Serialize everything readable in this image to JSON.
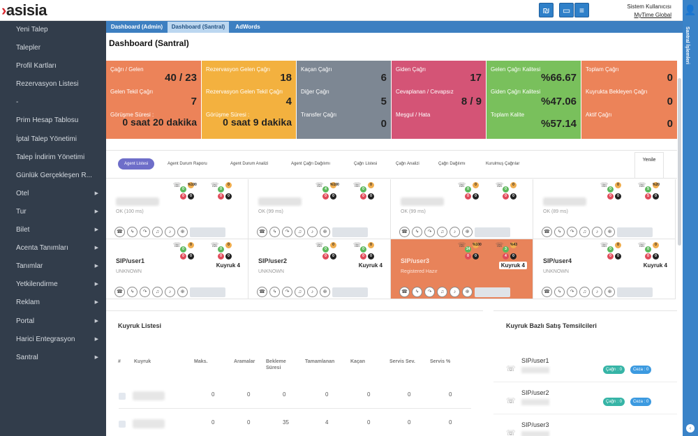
{
  "header": {
    "logo": "asisia",
    "user_title": "Sistem Kullanıcısı",
    "user_company": "MyTime Global",
    "icons": [
      "shekel-icon",
      "monitor-icon",
      "menu-icon",
      "user-icon"
    ]
  },
  "sidebar": {
    "items": [
      {
        "label": "Yeni Talep",
        "sub": false
      },
      {
        "label": "Talepler",
        "sub": false
      },
      {
        "label": "Profil Kartları",
        "sub": false
      },
      {
        "label": "Rezervasyon Listesi",
        "sub": false
      },
      {
        "label": "-",
        "sub": false
      },
      {
        "label": "Prim Hesap Tablosu",
        "sub": false
      },
      {
        "label": "İptal Talep Yönetimi",
        "sub": false
      },
      {
        "label": "Talep İndirim Yönetimi",
        "sub": false
      },
      {
        "label": "Günlük Gerçekleşen R...",
        "sub": false
      },
      {
        "label": "Otel",
        "sub": true
      },
      {
        "label": "Tur",
        "sub": true
      },
      {
        "label": "Bilet",
        "sub": true
      },
      {
        "label": "Acenta Tanımları",
        "sub": true
      },
      {
        "label": "Tanımlar",
        "sub": true
      },
      {
        "label": "Yetkilendirme",
        "sub": true
      },
      {
        "label": "Reklam",
        "sub": true
      },
      {
        "label": "Portal",
        "sub": true
      },
      {
        "label": "Harici Entegrasyon",
        "sub": true
      },
      {
        "label": "Santral",
        "sub": true
      }
    ]
  },
  "rightbar": {
    "label": "Santral İşlemleri"
  },
  "tabs": [
    "Dashboard (Admin)",
    "Dashboard (Santral)",
    "AdWords"
  ],
  "page_title": "Dashboard (Santral)",
  "stats": [
    {
      "color": "#ec8359",
      "rows": [
        {
          "label": "Çağrı / Gelen",
          "value": "40 / 23"
        },
        {
          "label": "Gelen Tekil Çağrı",
          "value": "7"
        },
        {
          "label": "Görüşme Süresi :",
          "value": "0 saat 20 dakika"
        }
      ]
    },
    {
      "color": "#f3b13f",
      "rows": [
        {
          "label": "Rezervasyon Gelen Çağrı",
          "value": "18"
        },
        {
          "label": "Rezervasyon Gelen Tekil Çağrı",
          "value": "4"
        },
        {
          "label": "Görüşme Süresi :",
          "value": "0 saat 9 dakika"
        }
      ]
    },
    {
      "color": "#7d8793",
      "rows": [
        {
          "label": "Kaçan Çağrı",
          "value": "6"
        },
        {
          "label": "Diğer Çağrı",
          "value": "5"
        },
        {
          "label": "Transfer Çağrı",
          "value": "0"
        }
      ]
    },
    {
      "color": "#d45476",
      "rows": [
        {
          "label": "Giden Çağrı",
          "value": "17"
        },
        {
          "label": "Cevaplanan / Cevapsız",
          "value": "8 / 9"
        },
        {
          "label": "Meşgul / Hata",
          "value": ""
        }
      ]
    },
    {
      "color": "#79c05c",
      "rows": [
        {
          "label": "Gelen Çağrı Kalitesi",
          "value": "%66.67"
        },
        {
          "label": "Giden Çağrı Kalitesi",
          "value": "%47.06"
        },
        {
          "label": "Toplam Kalite",
          "value": "%57.14"
        }
      ]
    },
    {
      "color": "#ec8359",
      "rows": [
        {
          "label": "Toplam Çağrı",
          "value": "0"
        },
        {
          "label": "Kuyrukta Bekleyen Çağrı",
          "value": "0"
        },
        {
          "label": "Aktif Çağrı",
          "value": "0"
        }
      ]
    }
  ],
  "agent_tabs": [
    "Agent Listesi",
    "Agent Durum Raporu",
    "Agent Durum Analizi",
    "Agent Çağrı Dağılımı",
    "Çağrı Listesi",
    "Çağrı Analizi",
    "Çağrı Dağılımı",
    "Kurulmuş Çağrılar"
  ],
  "refresh_label": "Yenile",
  "agents_top": [
    {
      "status": "OK (100 ms)",
      "in": [
        "0",
        "%\n100",
        "0",
        "0"
      ],
      "out": [
        "0",
        "0",
        "0",
        "0"
      ]
    },
    {
      "status": "OK (99 ms)",
      "in": [
        "4",
        "%\n100",
        "0",
        "0"
      ],
      "out": [
        "0",
        "0",
        "0",
        "0"
      ]
    },
    {
      "status": "OK (99 ms)",
      "in": [
        "0",
        "0",
        "0",
        "0"
      ],
      "out": [
        "0",
        "0",
        "0",
        "0"
      ]
    },
    {
      "status": "OK (89 ms)",
      "in": [
        "0",
        "0",
        "0",
        "0"
      ],
      "out": [
        "5",
        "%\n20",
        "5",
        "0"
      ]
    }
  ],
  "agents_bottom": [
    {
      "name": "SIP/user1",
      "status": "UNKNOWN",
      "queue": "Kuyruk 4",
      "highlight": false,
      "in": [
        "0",
        "0",
        "0",
        "0"
      ],
      "out": [
        "0",
        "0",
        "0",
        "0"
      ]
    },
    {
      "name": "SIP/user2",
      "status": "UNKNOWN",
      "queue": "Kuyruk 4",
      "highlight": false,
      "in": [
        "0",
        "0",
        "0",
        "0"
      ],
      "out": [
        "0",
        "0",
        "0",
        "0"
      ]
    },
    {
      "name": "SIP/user3",
      "status": "Registered Hazır",
      "queue": "Kuyruk 4",
      "highlight": true,
      "in": [
        "14",
        "%\n100",
        "0",
        "0"
      ],
      "out": [
        "3",
        "%\n43",
        "4",
        "0"
      ]
    },
    {
      "name": "SIP/user4",
      "status": "UNKNOWN",
      "queue": "Kuyruk 4",
      "highlight": false,
      "in": [
        "0",
        "0",
        "0",
        "0"
      ],
      "out": [
        "0",
        "0",
        "0",
        "0"
      ]
    }
  ],
  "queue_panel": {
    "title": "Kuyruk Listesi",
    "headers": [
      "#",
      "Kuyruk",
      "Maks.",
      "Aramalar",
      "Bekleme Süresi",
      "Tamamlanan",
      "Kaçan",
      "Servis Sev.",
      "Servis %"
    ],
    "rows": [
      [
        "0",
        "0",
        "0",
        "0",
        "0",
        "0",
        "0"
      ],
      [
        "0",
        "0",
        "35",
        "4",
        "0",
        "0",
        "0"
      ]
    ]
  },
  "rep_panel": {
    "title": "Kuyruk Bazlı Satış Temsilcileri",
    "reps": [
      {
        "name": "SIP/user1",
        "cagri": "Çağrı : 0",
        "ceza": "Ceza : 0"
      },
      {
        "name": "SIP/user2",
        "cagri": "Çağrı : 0",
        "ceza": "Ceza : 0"
      },
      {
        "name": "SIP/user3",
        "cagri": "",
        "ceza": ""
      }
    ]
  }
}
